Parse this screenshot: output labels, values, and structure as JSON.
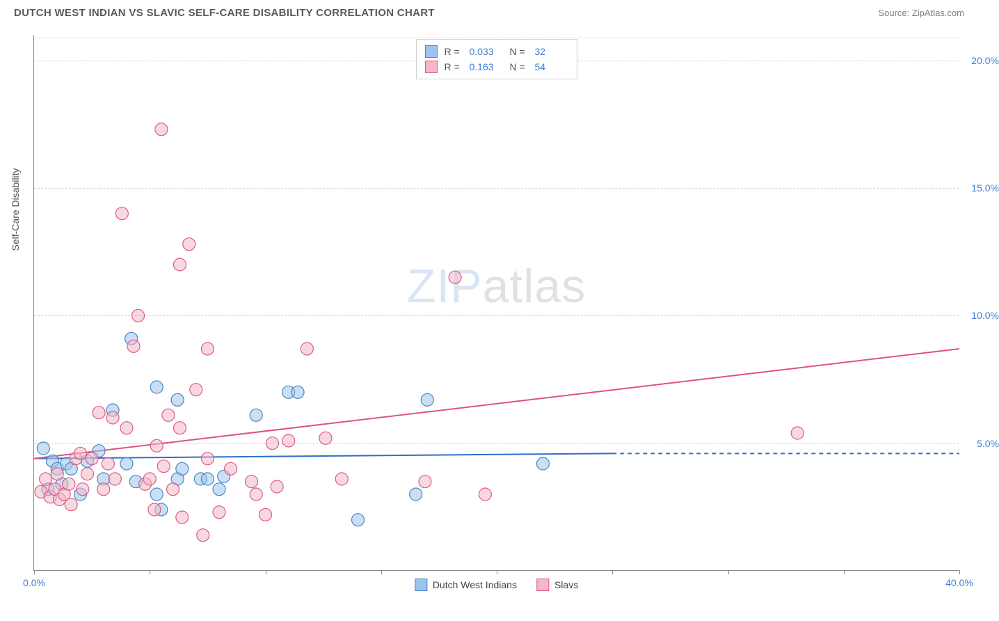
{
  "header": {
    "title": "DUTCH WEST INDIAN VS SLAVIC SELF-CARE DISABILITY CORRELATION CHART",
    "source_label": "Source: ",
    "source_name": "ZipAtlas.com"
  },
  "watermark": {
    "part1": "ZIP",
    "part2": "atlas"
  },
  "chart": {
    "type": "scatter",
    "ylabel": "Self-Care Disability",
    "xlim": [
      0,
      40
    ],
    "ylim": [
      0,
      21
    ],
    "xtick_positions": [
      0,
      5,
      10,
      15,
      20,
      25,
      30,
      35,
      40
    ],
    "xtick_labels": {
      "0": "0.0%",
      "40": "40.0%"
    },
    "ytick_positions": [
      5,
      10,
      15,
      20
    ],
    "ytick_labels": {
      "5": "5.0%",
      "10": "10.0%",
      "15": "15.0%",
      "20": "20.0%"
    },
    "grid_color": "#d0d0d0",
    "axis_color": "#888888",
    "background_color": "#ffffff",
    "marker_radius": 9,
    "marker_opacity": 0.55,
    "series": [
      {
        "name": "Dutch West Indians",
        "color_fill": "#9ec4ea",
        "color_stroke": "#4a86c5",
        "r_value": "0.033",
        "n_value": "32",
        "trend": {
          "x1": 0,
          "y1": 4.4,
          "x2": 25,
          "y2": 4.6,
          "solid_until_x": 25,
          "dash_to_x": 40,
          "color": "#2d6fc9",
          "width": 2
        },
        "points": [
          [
            0.4,
            4.8
          ],
          [
            0.6,
            3.2
          ],
          [
            0.8,
            4.3
          ],
          [
            1.0,
            4.0
          ],
          [
            1.2,
            3.4
          ],
          [
            1.4,
            4.2
          ],
          [
            1.6,
            4.0
          ],
          [
            2.0,
            3.0
          ],
          [
            2.3,
            4.3
          ],
          [
            2.8,
            4.7
          ],
          [
            3.0,
            3.6
          ],
          [
            3.4,
            6.3
          ],
          [
            4.0,
            4.2
          ],
          [
            4.2,
            9.1
          ],
          [
            4.4,
            3.5
          ],
          [
            5.3,
            3.0
          ],
          [
            5.3,
            7.2
          ],
          [
            5.5,
            2.4
          ],
          [
            6.2,
            3.6
          ],
          [
            6.2,
            6.7
          ],
          [
            6.4,
            4.0
          ],
          [
            7.2,
            3.6
          ],
          [
            7.5,
            3.6
          ],
          [
            8.0,
            3.2
          ],
          [
            8.2,
            3.7
          ],
          [
            9.6,
            6.1
          ],
          [
            11.0,
            7.0
          ],
          [
            11.4,
            7.0
          ],
          [
            14.0,
            2.0
          ],
          [
            16.5,
            3.0
          ],
          [
            17.0,
            6.7
          ],
          [
            22.0,
            4.2
          ]
        ]
      },
      {
        "name": "Slavs",
        "color_fill": "#f2b8c6",
        "color_stroke": "#dd5b83",
        "r_value": "0.163",
        "n_value": "54",
        "trend": {
          "x1": 0,
          "y1": 4.4,
          "x2": 40,
          "y2": 8.7,
          "solid_until_x": 40,
          "dash_to_x": 40,
          "color": "#e0537f",
          "width": 2
        },
        "points": [
          [
            0.3,
            3.1
          ],
          [
            0.5,
            3.6
          ],
          [
            0.7,
            2.9
          ],
          [
            0.9,
            3.2
          ],
          [
            1.0,
            3.8
          ],
          [
            1.1,
            2.8
          ],
          [
            1.3,
            3.0
          ],
          [
            1.5,
            3.4
          ],
          [
            1.6,
            2.6
          ],
          [
            1.8,
            4.4
          ],
          [
            2.0,
            4.6
          ],
          [
            2.1,
            3.2
          ],
          [
            2.3,
            3.8
          ],
          [
            2.5,
            4.4
          ],
          [
            2.8,
            6.2
          ],
          [
            3.0,
            3.2
          ],
          [
            3.2,
            4.2
          ],
          [
            3.4,
            6.0
          ],
          [
            3.5,
            3.6
          ],
          [
            3.8,
            14.0
          ],
          [
            4.0,
            5.6
          ],
          [
            4.3,
            8.8
          ],
          [
            4.5,
            10.0
          ],
          [
            4.8,
            3.4
          ],
          [
            5.0,
            3.6
          ],
          [
            5.2,
            2.4
          ],
          [
            5.3,
            4.9
          ],
          [
            5.5,
            17.3
          ],
          [
            5.6,
            4.1
          ],
          [
            5.8,
            6.1
          ],
          [
            6.0,
            3.2
          ],
          [
            6.3,
            5.6
          ],
          [
            6.3,
            12.0
          ],
          [
            6.4,
            2.1
          ],
          [
            6.7,
            12.8
          ],
          [
            7.0,
            7.1
          ],
          [
            7.3,
            1.4
          ],
          [
            7.5,
            8.7
          ],
          [
            7.5,
            4.4
          ],
          [
            8.0,
            2.3
          ],
          [
            8.5,
            4.0
          ],
          [
            9.4,
            3.5
          ],
          [
            9.6,
            3.0
          ],
          [
            10.0,
            2.2
          ],
          [
            10.3,
            5.0
          ],
          [
            10.5,
            3.3
          ],
          [
            11.0,
            5.1
          ],
          [
            11.8,
            8.7
          ],
          [
            12.6,
            5.2
          ],
          [
            13.3,
            3.6
          ],
          [
            16.9,
            3.5
          ],
          [
            18.2,
            11.5
          ],
          [
            19.5,
            3.0
          ],
          [
            33.0,
            5.4
          ]
        ]
      }
    ],
    "legend_top": {
      "r_label": "R =",
      "n_label": "N ="
    },
    "legend_bottom_labels": [
      "Dutch West Indians",
      "Slavs"
    ]
  }
}
